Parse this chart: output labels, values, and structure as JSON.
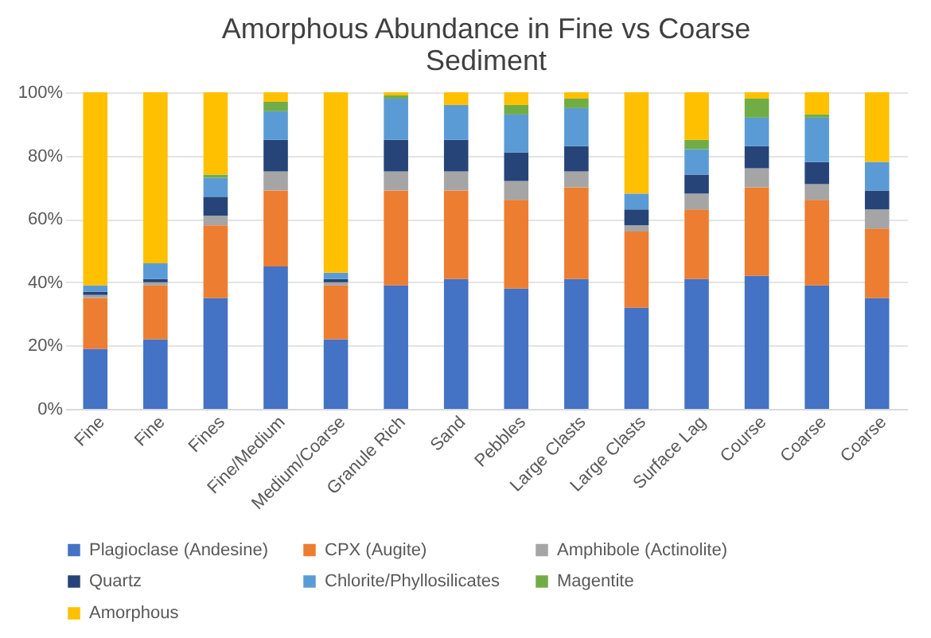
{
  "chart_data": {
    "type": "bar",
    "title": "Amorphous Abundance in Fine vs Coarse Sediment",
    "stacked": true,
    "categories": [
      "Fine",
      "Fine",
      "Fines",
      "Fine/Medium",
      "Medium/Coarse",
      "Granule Rich",
      "Sand",
      "Pebbles",
      "Large Clasts",
      "Large Clasts",
      "Surface Lag",
      "Course",
      "Coarse",
      "Coarse"
    ],
    "series": [
      {
        "name": "Plagioclase (Andesine)",
        "color": "#4472c4",
        "values": [
          19,
          22,
          35,
          45,
          22,
          39,
          41,
          38,
          41,
          32,
          41,
          42,
          39,
          35
        ]
      },
      {
        "name": "CPX (Augite)",
        "color": "#ed7d31",
        "values": [
          16,
          17,
          23,
          24,
          17,
          30,
          28,
          28,
          29,
          24,
          22,
          28,
          27,
          22
        ]
      },
      {
        "name": "Amphibole (Actinolite)",
        "color": "#a5a5a5",
        "values": [
          1,
          1,
          3,
          6,
          1,
          6,
          6,
          6,
          5,
          2,
          5,
          6,
          5,
          6
        ]
      },
      {
        "name": "Quartz",
        "color": "#264478",
        "values": [
          1,
          1,
          6,
          10,
          1,
          10,
          10,
          9,
          8,
          5,
          6,
          7,
          7,
          6
        ]
      },
      {
        "name": "Chlorite/Phyllosilicates",
        "color": "#5b9bd5",
        "values": [
          2,
          5,
          6,
          9,
          2,
          13,
          11,
          12,
          12,
          5,
          8,
          9,
          14,
          9
        ]
      },
      {
        "name": "Magentite",
        "color": "#70ad47",
        "values": [
          0,
          0,
          1,
          3,
          0,
          1,
          0,
          3,
          3,
          0,
          3,
          6,
          1,
          0
        ]
      },
      {
        "name": "Amorphous",
        "color": "#ffc000",
        "values": [
          61,
          54,
          26,
          3,
          57,
          1,
          4,
          4,
          2,
          32,
          15,
          2,
          7,
          22
        ]
      }
    ],
    "ylim": [
      0,
      100
    ],
    "yticks": [
      {
        "value": 0,
        "label": "0%"
      },
      {
        "value": 20,
        "label": "20%"
      },
      {
        "value": 40,
        "label": "40%"
      },
      {
        "value": 60,
        "label": "60%"
      },
      {
        "value": 80,
        "label": "80%"
      },
      {
        "value": 100,
        "label": "100%"
      }
    ],
    "grid": "y",
    "legend": "bottom"
  }
}
